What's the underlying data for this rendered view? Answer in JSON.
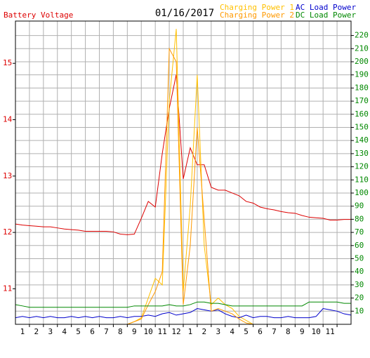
{
  "chart_data": {
    "type": "line",
    "title": "01/16/2017",
    "x": [
      0,
      0.5,
      1,
      1.5,
      2,
      2.5,
      3,
      3.5,
      4,
      4.5,
      5,
      5.5,
      6,
      6.5,
      7,
      7.5,
      8,
      8.5,
      9,
      9.5,
      10,
      10.5,
      11,
      11.5,
      12,
      12.5,
      13,
      13.5,
      14,
      14.5,
      15,
      15.5,
      16,
      16.5,
      17,
      17.5,
      18,
      18.5,
      19,
      19.5,
      20,
      20.5,
      21,
      21.5,
      22,
      22.5,
      23,
      23.5,
      24
    ],
    "xlim": [
      0,
      24
    ],
    "xticks": [
      {
        "value": 1,
        "label": "1"
      },
      {
        "value": 2,
        "label": "2"
      },
      {
        "value": 3,
        "label": "3"
      },
      {
        "value": 4,
        "label": "4"
      },
      {
        "value": 5,
        "label": "5"
      },
      {
        "value": 6,
        "label": "6"
      },
      {
        "value": 7,
        "label": "7"
      },
      {
        "value": 8,
        "label": "8"
      },
      {
        "value": 9,
        "label": "9"
      },
      {
        "value": 10,
        "label": "10"
      },
      {
        "value": 11,
        "label": "11"
      },
      {
        "value": 12,
        "label": "12"
      },
      {
        "value": 13,
        "label": "1"
      },
      {
        "value": 14,
        "label": "2"
      },
      {
        "value": 15,
        "label": "3"
      },
      {
        "value": 16,
        "label": "4"
      },
      {
        "value": 17,
        "label": "5"
      },
      {
        "value": 18,
        "label": "6"
      },
      {
        "value": 19,
        "label": "7"
      },
      {
        "value": 20,
        "label": "8"
      },
      {
        "value": 21,
        "label": "9"
      },
      {
        "value": 22,
        "label": "10"
      },
      {
        "value": 23,
        "label": "11"
      }
    ],
    "ylim": [
      10.37,
      15.75
    ],
    "yticks": [
      11,
      12,
      13,
      14,
      15
    ],
    "y2lim": [
      0,
      231
    ],
    "y2ticks": [
      10,
      20,
      30,
      40,
      50,
      60,
      70,
      80,
      90,
      100,
      110,
      120,
      130,
      140,
      150,
      160,
      170,
      180,
      190,
      200,
      210,
      220
    ],
    "grid": true,
    "series": [
      {
        "name": "Battery Voltage",
        "color": "#dd0000",
        "values": [
          12.15,
          12.13,
          12.12,
          12.11,
          12.1,
          12.1,
          12.08,
          12.06,
          12.05,
          12.04,
          12.02,
          12.02,
          12.02,
          12.02,
          12.01,
          11.97,
          11.96,
          11.97,
          12.25,
          12.55,
          12.45,
          13.4,
          14.2,
          14.8,
          12.95,
          13.5,
          13.2,
          13.2,
          12.8,
          12.75,
          12.75,
          12.7,
          12.65,
          12.55,
          12.52,
          12.45,
          12.42,
          12.4,
          12.37,
          12.35,
          12.34,
          12.3,
          12.27,
          12.26,
          12.25,
          12.22,
          12.22,
          12.23,
          12.23
        ]
      },
      {
        "name": "Charging Power 1",
        "color": "#ffc000",
        "axis": "y2",
        "values": [
          0,
          0,
          0,
          0,
          0,
          0,
          0,
          0,
          0,
          0,
          0,
          0,
          0,
          0,
          0,
          0,
          0,
          2,
          5,
          20,
          35,
          30,
          170,
          225,
          25,
          90,
          190,
          60,
          15,
          20,
          15,
          12,
          6,
          3,
          0,
          0,
          0,
          0,
          0,
          0,
          0,
          0,
          0,
          0,
          0,
          0,
          0,
          0,
          0
        ]
      },
      {
        "name": "AC Load Power",
        "color": "#0000cc",
        "axis": "y2",
        "values": [
          5,
          6,
          5,
          6,
          5,
          6,
          5,
          5,
          6,
          5,
          6,
          5,
          6,
          5,
          5,
          6,
          5,
          6,
          6,
          7,
          6,
          8,
          9,
          7,
          8,
          9,
          12,
          11,
          10,
          11,
          8,
          6,
          5,
          7,
          5,
          6,
          6,
          5,
          5,
          6,
          5,
          5,
          5,
          6,
          12,
          11,
          10,
          8,
          7
        ]
      },
      {
        "name": "Charging Power 2",
        "color": "#ff9900",
        "axis": "y2",
        "values": [
          0,
          0,
          0,
          0,
          0,
          0,
          0,
          0,
          0,
          0,
          0,
          0,
          0,
          0,
          0,
          0,
          0,
          2,
          4,
          15,
          25,
          40,
          210,
          200,
          15,
          60,
          150,
          80,
          10,
          12,
          10,
          8,
          4,
          1,
          0,
          0,
          0,
          0,
          0,
          0,
          0,
          0,
          0,
          0,
          0,
          0,
          0,
          0,
          0
        ]
      },
      {
        "name": "DC Load Power",
        "color": "#008800",
        "axis": "y2",
        "values": [
          15,
          14,
          13,
          13,
          13,
          13,
          13,
          13,
          13,
          13,
          13,
          13,
          13,
          13,
          13,
          13,
          13,
          14,
          14,
          14,
          14,
          14,
          15,
          14,
          14,
          15,
          17,
          17,
          16,
          16,
          15,
          14,
          14,
          14,
          14,
          14,
          14,
          14,
          14,
          14,
          14,
          14,
          17,
          17,
          17,
          17,
          17,
          16,
          16
        ]
      }
    ]
  }
}
